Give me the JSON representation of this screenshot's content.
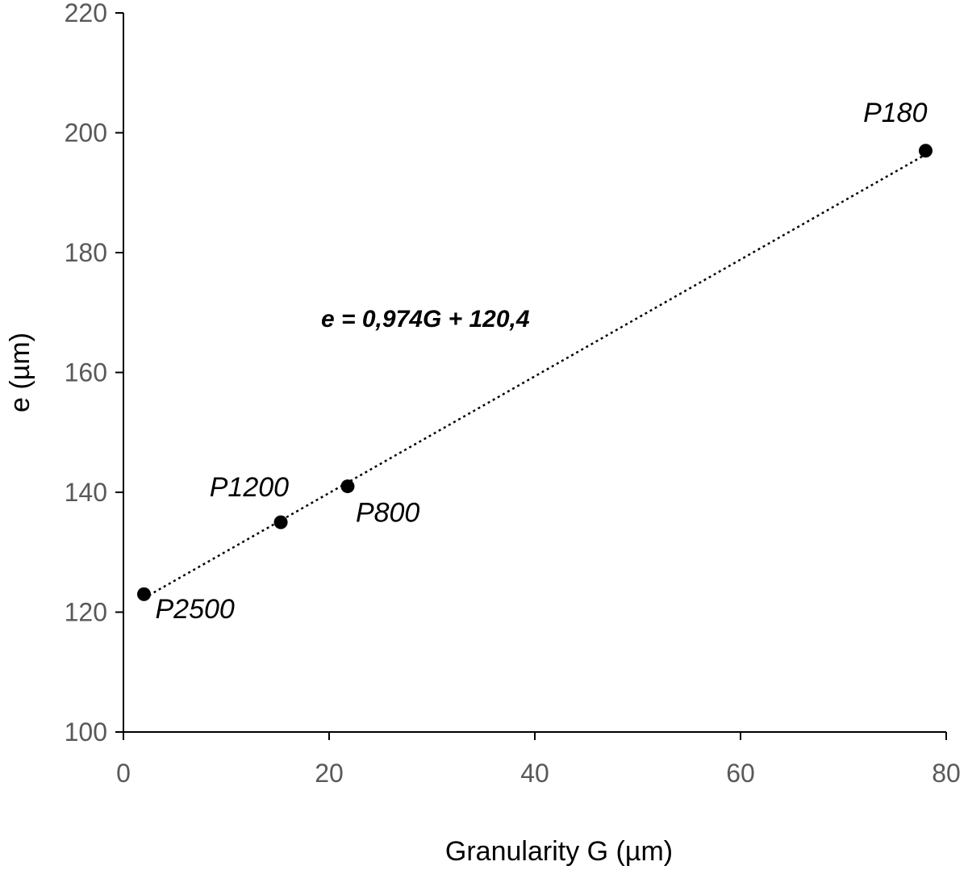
{
  "chart_data": {
    "type": "scatter",
    "title": "",
    "xlabel": "Granularity G (µm)",
    "ylabel": "e (µm)",
    "xlim": [
      0,
      80
    ],
    "ylim": [
      100,
      220
    ],
    "xticks": [
      0,
      20,
      40,
      60,
      80
    ],
    "yticks": [
      100,
      120,
      140,
      160,
      180,
      200,
      220
    ],
    "grid": false,
    "legend": "none",
    "series": [
      {
        "points": [
          {
            "x": 2,
            "y": 123,
            "label": "P2500"
          },
          {
            "x": 15.3,
            "y": 135,
            "label": "P1200"
          },
          {
            "x": 21.8,
            "y": 141,
            "label": "P800"
          },
          {
            "x": 78,
            "y": 197,
            "label": "P180"
          }
        ],
        "color": "#000000"
      }
    ],
    "trendline": {
      "style": "dotted",
      "slope": 0.974,
      "intercept": 120.4,
      "x_range": [
        2,
        78
      ],
      "equation": "e = 0,974G + 120,4"
    }
  }
}
